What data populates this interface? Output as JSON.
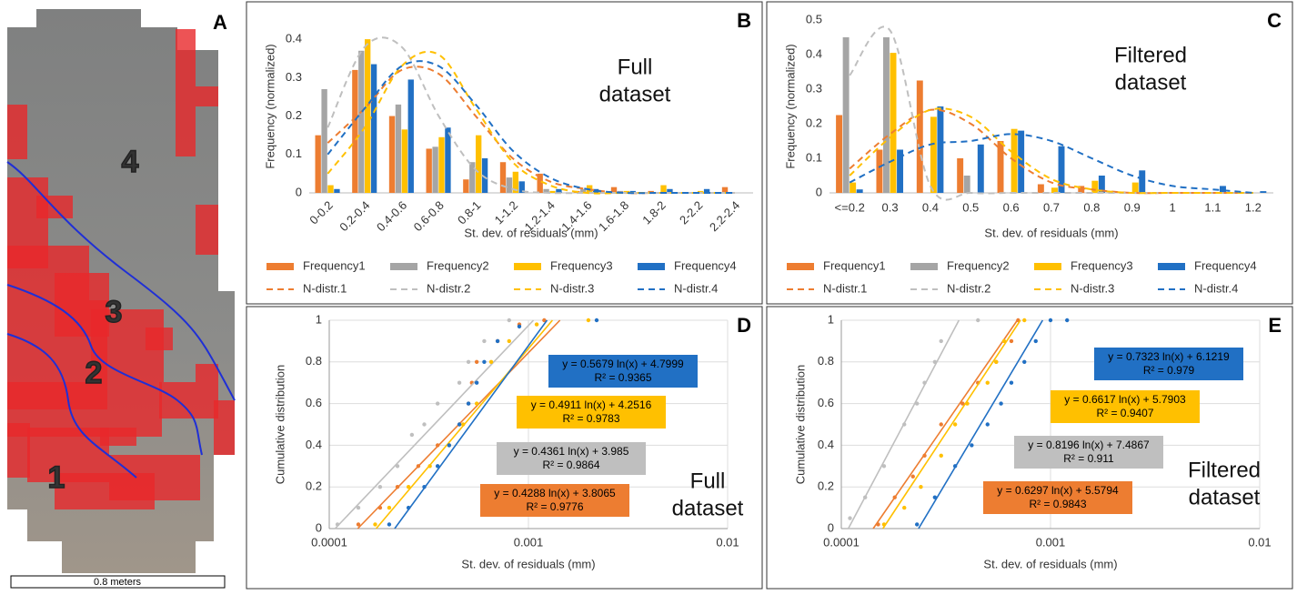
{
  "panel_a": {
    "panel_label": "A",
    "zone_labels": [
      "1",
      "2",
      "3",
      "4"
    ],
    "scale_bar": "0.8 meters"
  },
  "chart_data": [
    {
      "type": "bar",
      "panel_label": "B",
      "annotation": [
        "Full",
        "dataset"
      ],
      "xlabel": "St. dev. of residuals (mm)",
      "ylabel": "Frequency (normalized)",
      "categories": [
        "0-0.2",
        "0.2-0.4",
        "0.4-0.6",
        "0.6-0.8",
        "0.8-1",
        "1-1.2",
        "1.2-1.4",
        "1.4-1.6",
        "1.6-1.8",
        "1.8-2",
        "2-2.2",
        "2.2-2.4"
      ],
      "ylim": [
        0,
        0.45
      ],
      "yticks": [
        0,
        0.1,
        0.2,
        0.3,
        0.4
      ],
      "legend": "bottom",
      "series": [
        {
          "name": "Frequency1",
          "color": "#ED7D31",
          "values": [
            0.15,
            0.32,
            0.2,
            0.115,
            0.035,
            0.08,
            0.05,
            0.005,
            0.015,
            0.005,
            0,
            0.015
          ]
        },
        {
          "name": "Frequency2",
          "color": "#A5A5A5",
          "values": [
            0.27,
            0.37,
            0.23,
            0.12,
            0.08,
            0.04,
            0.01,
            0.01,
            0.005,
            0,
            0,
            0
          ]
        },
        {
          "name": "Frequency3",
          "color": "#FFC000",
          "values": [
            0.02,
            0.4,
            0.165,
            0.145,
            0.15,
            0.055,
            0.005,
            0.02,
            0.005,
            0.02,
            0.005,
            0
          ]
        },
        {
          "name": "Frequency4",
          "color": "#2170C4",
          "values": [
            0.01,
            0.335,
            0.295,
            0.17,
            0.09,
            0.03,
            0.01,
            0.01,
            0.005,
            0.01,
            0.01,
            0
          ]
        }
      ],
      "curves": [
        {
          "name": "N-distr.1",
          "color": "#ED7D31",
          "line_style": "dashed",
          "values": [
            0.13,
            0.22,
            0.32,
            0.31,
            0.2,
            0.09,
            0.03,
            0.01,
            0,
            0,
            0,
            0
          ]
        },
        {
          "name": "N-distr.2",
          "color": "#BFBFBF",
          "line_style": "dashed",
          "values": [
            0.17,
            0.38,
            0.38,
            0.2,
            0.06,
            0.01,
            0,
            0,
            0,
            0,
            0,
            0
          ]
        },
        {
          "name": "N-distr.3",
          "color": "#FFC000",
          "line_style": "dashed",
          "values": [
            0.05,
            0.17,
            0.33,
            0.36,
            0.22,
            0.08,
            0.02,
            0,
            0,
            0,
            0,
            0
          ]
        },
        {
          "name": "N-distr.4",
          "color": "#2170C4",
          "line_style": "dashed",
          "values": [
            0.1,
            0.22,
            0.33,
            0.33,
            0.23,
            0.11,
            0.04,
            0.01,
            0,
            0,
            0,
            0
          ]
        }
      ]
    },
    {
      "type": "bar",
      "panel_label": "C",
      "annotation": [
        "Filtered",
        "dataset"
      ],
      "xlabel": "St. dev. of residuals (mm)",
      "ylabel": "Frequency (normalized)",
      "categories": [
        "<=0.2",
        "0.3",
        "0.4",
        "0.5",
        "0.6",
        "0.7",
        "0.8",
        "0.9",
        "1",
        "1.1",
        "1.2"
      ],
      "ylim": [
        0,
        0.5
      ],
      "yticks": [
        0,
        0.1,
        0.2,
        0.3,
        0.4,
        0.5
      ],
      "legend": "bottom",
      "series": [
        {
          "name": "Frequency1",
          "color": "#ED7D31",
          "values": [
            0.225,
            0.125,
            0.325,
            0.1,
            0.15,
            0.025,
            0.02,
            0,
            0,
            0,
            0
          ]
        },
        {
          "name": "Frequency2",
          "color": "#A5A5A5",
          "values": [
            0.45,
            0.45,
            0,
            0.05,
            0,
            0,
            0,
            0,
            0,
            0,
            0
          ]
        },
        {
          "name": "Frequency3",
          "color": "#FFC000",
          "values": [
            0.03,
            0.405,
            0.22,
            0,
            0.185,
            0.015,
            0.035,
            0.03,
            0,
            0,
            0
          ]
        },
        {
          "name": "Frequency4",
          "color": "#2170C4",
          "values": [
            0.01,
            0.125,
            0.25,
            0.14,
            0.18,
            0.135,
            0.05,
            0.065,
            0,
            0.02,
            0.005
          ]
        }
      ],
      "curves": [
        {
          "name": "N-distr.1",
          "color": "#ED7D31",
          "line_style": "dashed",
          "values": [
            0.07,
            0.17,
            0.24,
            0.2,
            0.1,
            0.03,
            0.01,
            0,
            0,
            0,
            0
          ]
        },
        {
          "name": "N-distr.2",
          "color": "#BFBFBF",
          "line_style": "dashed",
          "values": [
            0.34,
            0.47,
            0.02,
            0,
            0,
            0,
            0,
            0,
            0,
            0,
            0
          ]
        },
        {
          "name": "N-distr.3",
          "color": "#FFC000",
          "line_style": "dashed",
          "values": [
            0.05,
            0.16,
            0.24,
            0.22,
            0.12,
            0.04,
            0.01,
            0,
            0,
            0,
            0
          ]
        },
        {
          "name": "N-distr.4",
          "color": "#2170C4",
          "line_style": "dashed",
          "values": [
            0.03,
            0.09,
            0.14,
            0.15,
            0.17,
            0.15,
            0.1,
            0.05,
            0.02,
            0.01,
            0
          ]
        }
      ]
    },
    {
      "type": "scatter",
      "panel_label": "D",
      "annotation": [
        "Full",
        "dataset"
      ],
      "xlabel": "St. dev. of residuals (mm)",
      "ylabel": "Cumulative distribution",
      "xscale": "log",
      "xlim": [
        0.0001,
        0.01
      ],
      "xticks": [
        0.0001,
        0.001,
        0.01
      ],
      "ylim": [
        0,
        1
      ],
      "yticks": [
        0,
        0.2,
        0.4,
        0.6,
        0.8,
        1
      ],
      "grid": true,
      "series": [
        {
          "color": "#ED7D31",
          "x": [
            0.00014,
            0.00018,
            0.00022,
            0.00028,
            0.00035,
            0.00045,
            0.0005,
            0.00052,
            0.00055,
            0.0007,
            0.0009,
            0.0012
          ],
          "y": [
            0.02,
            0.1,
            0.2,
            0.3,
            0.4,
            0.5,
            0.6,
            0.7,
            0.8,
            0.9,
            0.98,
            1
          ],
          "trend_x": [
            0.000139,
            0.00144
          ],
          "trend_y": [
            0,
            1
          ],
          "equation": "y = 0.4288 ln(x) + 3.8065",
          "r2": "R² = 0.9776"
        },
        {
          "color": "#BFBFBF",
          "x": [
            0.00011,
            0.00014,
            0.00018,
            0.00022,
            0.00026,
            0.0003,
            0.00035,
            0.00045,
            0.0005,
            0.0006,
            0.0008
          ],
          "y": [
            0.02,
            0.1,
            0.2,
            0.3,
            0.45,
            0.5,
            0.6,
            0.7,
            0.8,
            0.9,
            1
          ],
          "trend_x": [
            0.000107,
            0.00106
          ],
          "trend_y": [
            0,
            1
          ],
          "equation": "y = 0.4361 ln(x) + 3.985",
          "r2": "R² = 0.9864"
        },
        {
          "color": "#FFC000",
          "x": [
            0.00017,
            0.0002,
            0.00025,
            0.00032,
            0.0004,
            0.00047,
            0.00055,
            0.00065,
            0.0008,
            0.0011,
            0.002
          ],
          "y": [
            0.02,
            0.1,
            0.2,
            0.3,
            0.4,
            0.5,
            0.6,
            0.8,
            0.9,
            0.98,
            1
          ],
          "trend_x": [
            0.000172,
            0.00132
          ],
          "trend_y": [
            0,
            1
          ],
          "equation": "y = 0.4911 ln(x) + 4.2516",
          "r2": "R² = 0.9783"
        },
        {
          "color": "#2170C4",
          "x": [
            0.0002,
            0.00025,
            0.0003,
            0.00035,
            0.0004,
            0.00045,
            0.0005,
            0.00055,
            0.0006,
            0.0007,
            0.0009,
            0.0022
          ],
          "y": [
            0.02,
            0.1,
            0.2,
            0.3,
            0.4,
            0.5,
            0.6,
            0.7,
            0.8,
            0.9,
            0.97,
            1
          ],
          "trend_x": [
            0.000213,
            0.00124
          ],
          "trend_y": [
            0,
            1
          ],
          "equation": "y = 0.5679 ln(x) + 4.7999",
          "r2": "R² = 0.9365"
        }
      ]
    },
    {
      "type": "scatter",
      "panel_label": "E",
      "annotation": [
        "Filtered",
        "dataset"
      ],
      "xlabel": "St. dev. of residuals (mm)",
      "ylabel": "Cumulative distribution",
      "xscale": "log",
      "xlim": [
        0.0001,
        0.01
      ],
      "xticks": [
        0.0001,
        0.001,
        0.01
      ],
      "ylim": [
        0,
        1
      ],
      "yticks": [
        0,
        0.2,
        0.4,
        0.6,
        0.8,
        1
      ],
      "grid": true,
      "series": [
        {
          "color": "#ED7D31",
          "x": [
            0.00015,
            0.00018,
            0.00022,
            0.00025,
            0.0003,
            0.00038,
            0.00045,
            0.00055,
            0.00065,
            0.0007
          ],
          "y": [
            0.02,
            0.15,
            0.25,
            0.35,
            0.5,
            0.6,
            0.7,
            0.8,
            0.9,
            1
          ],
          "trend_x": [
            0.000142,
            0.000694
          ],
          "trend_y": [
            0,
            1
          ],
          "equation": "y = 0.6297 ln(x) + 5.5794",
          "r2": "R² = 0.9843"
        },
        {
          "color": "#BFBFBF",
          "x": [
            0.00011,
            0.00013,
            0.00016,
            0.0002,
            0.00023,
            0.00025,
            0.00028,
            0.0003,
            0.00045
          ],
          "y": [
            0.05,
            0.15,
            0.3,
            0.5,
            0.6,
            0.7,
            0.8,
            0.9,
            1
          ],
          "trend_x": [
            0.000108,
            0.000365
          ],
          "trend_y": [
            0,
            1
          ],
          "equation": "y = 0.8196 ln(x) + 7.4867",
          "r2": "R² = 0.911"
        },
        {
          "color": "#FFC000",
          "x": [
            0.00016,
            0.0002,
            0.00024,
            0.0003,
            0.00035,
            0.0004,
            0.0005,
            0.00055,
            0.0006,
            0.00075
          ],
          "y": [
            0.02,
            0.1,
            0.2,
            0.35,
            0.5,
            0.6,
            0.7,
            0.8,
            0.9,
            1
          ],
          "trend_x": [
            0.000158,
            0.000718
          ],
          "trend_y": [
            0,
            1
          ],
          "equation": "y = 0.6617 ln(x) + 5.7903",
          "r2": "R² = 0.9407"
        },
        {
          "color": "#2170C4",
          "x": [
            0.00023,
            0.00028,
            0.00035,
            0.00042,
            0.0005,
            0.00058,
            0.00065,
            0.00075,
            0.00085,
            0.001,
            0.0012
          ],
          "y": [
            0.02,
            0.15,
            0.3,
            0.4,
            0.5,
            0.6,
            0.7,
            0.8,
            0.9,
            1,
            1
          ],
          "trend_x": [
            0.000234,
            0.000917
          ],
          "trend_y": [
            0,
            1
          ],
          "equation": "y = 0.7323 ln(x) + 6.1219",
          "r2": "R² = 0.979"
        }
      ]
    }
  ]
}
